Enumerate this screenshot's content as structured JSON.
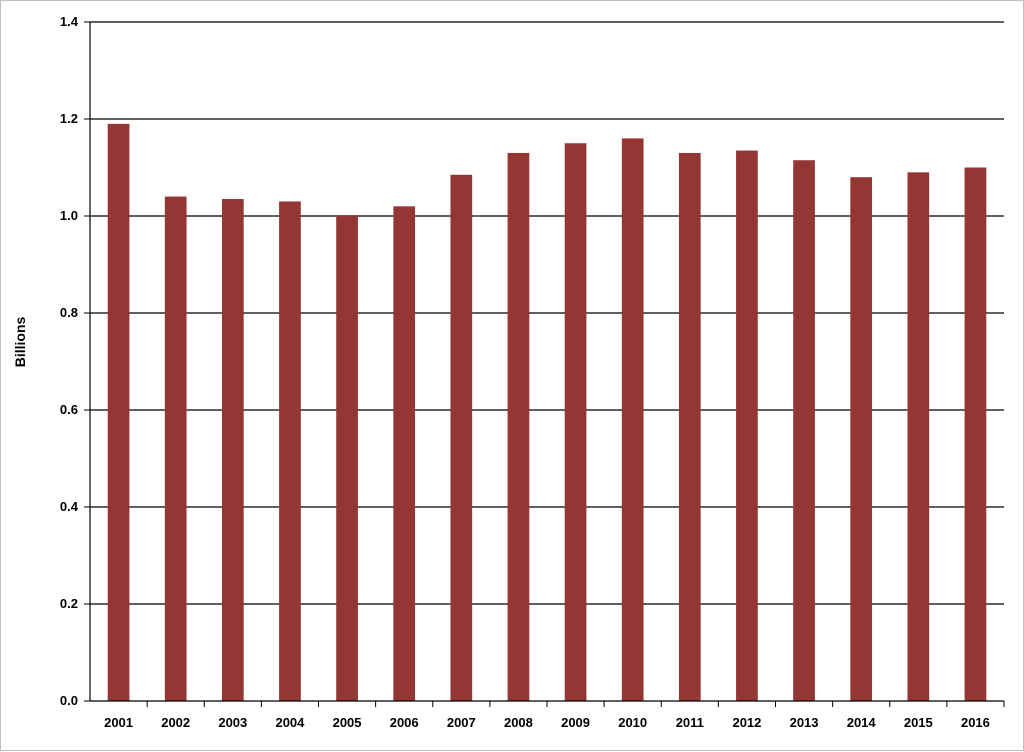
{
  "chart_data": {
    "type": "bar",
    "title": "",
    "xlabel": "",
    "ylabel": "Billions",
    "ylim": [
      0,
      1.4
    ],
    "yticks": [
      "0.0",
      "0.2",
      "0.4",
      "0.6",
      "0.8",
      "1.0",
      "1.2",
      "1.4"
    ],
    "grid": true,
    "bar_color": "#943634",
    "categories": [
      "2001",
      "2002",
      "2003",
      "2004",
      "2005",
      "2006",
      "2007",
      "2008",
      "2009",
      "2010",
      "2011",
      "2012",
      "2013",
      "2014",
      "2015",
      "2016"
    ],
    "values": [
      1.19,
      1.04,
      1.035,
      1.03,
      1.0,
      1.02,
      1.085,
      1.13,
      1.15,
      1.16,
      1.13,
      1.135,
      1.115,
      1.08,
      1.09,
      1.1
    ]
  }
}
